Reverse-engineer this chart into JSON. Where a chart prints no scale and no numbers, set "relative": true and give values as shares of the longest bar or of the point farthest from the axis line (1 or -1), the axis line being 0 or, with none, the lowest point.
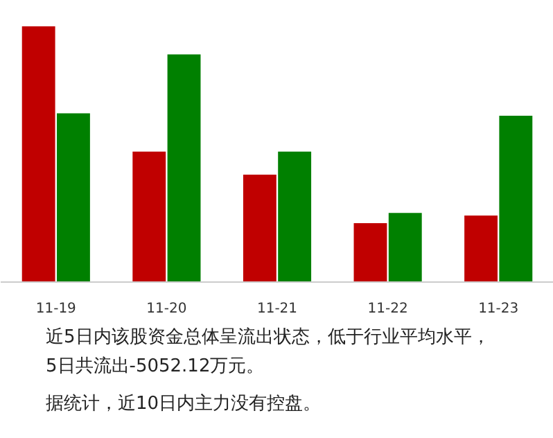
{
  "chart_data": {
    "type": "bar",
    "relative": true,
    "grid": false,
    "categories": [
      "11-19",
      "11-20",
      "11-21",
      "11-22",
      "11-23"
    ],
    "series": [
      {
        "color": "#c00000",
        "values": [
          1.0,
          0.51,
          0.42,
          0.23,
          0.26
        ]
      },
      {
        "color": "#008000",
        "values": [
          0.66,
          0.89,
          0.51,
          0.27,
          0.65
        ]
      }
    ],
    "annotations": [
      "近5日内该股资金总体呈流出状态，低于行业平均水平，5日共流出-5052.12万元。",
      "据统计，近10日内主力没有控盘。"
    ]
  }
}
